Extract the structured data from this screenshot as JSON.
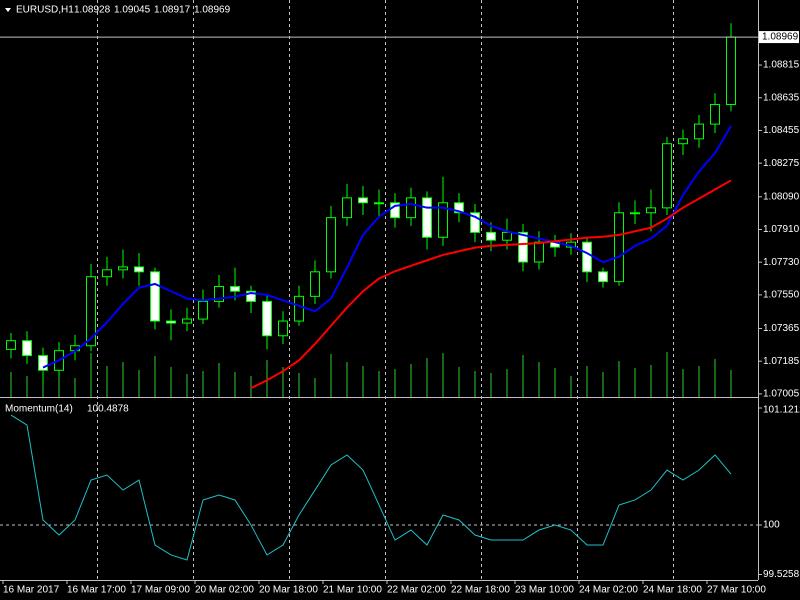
{
  "chart_data": [
    {
      "type": "candlestick",
      "title": "EURUSD,H1",
      "header_values": [
        1.08928,
        1.09045,
        1.08917,
        1.08969
      ],
      "categories": [
        "16 Mar 2017",
        null,
        null,
        null,
        "16 Mar 17:00",
        null,
        null,
        null,
        "17 Mar 09:00",
        null,
        null,
        null,
        "20 Mar 02:00",
        null,
        null,
        null,
        "20 Mar 18:00",
        null,
        null,
        null,
        "21 Mar 10:00",
        null,
        null,
        null,
        "22 Mar 02:00",
        null,
        null,
        null,
        "22 Mar 18:00",
        null,
        null,
        null,
        "23 Mar 10:00",
        null,
        null,
        null,
        "24 Mar 02:00",
        null,
        null,
        null,
        "24 Mar 18:00",
        null,
        null,
        null,
        "27 Mar 10:00",
        null
      ],
      "open": [
        1.0725,
        1.07298,
        1.07216,
        1.07135,
        1.07243,
        1.0727,
        1.0765,
        1.07688,
        1.07704,
        1.07677,
        1.07406,
        1.07395,
        1.07417,
        1.07514,
        1.07596,
        1.0757,
        1.07514,
        1.07325,
        1.07406,
        1.07542,
        1.07677,
        1.07975,
        1.08084,
        1.08057,
        1.08057,
        1.07975,
        1.08084,
        1.07867,
        1.08057,
        1.08002,
        1.07894,
        1.07851,
        1.07894,
        1.07731,
        1.0784,
        1.07813,
        1.0784,
        1.07677,
        1.07623,
        1.08002,
        1.08002,
        1.08029,
        1.08382,
        1.08409,
        1.0849,
        1.08598
      ],
      "high": [
        1.0734,
        1.0735,
        1.0726,
        1.0729,
        1.0733,
        1.0772,
        1.0776,
        1.078,
        1.0778,
        1.077,
        1.0747,
        1.0748,
        1.0758,
        1.0766,
        1.077,
        1.076,
        1.0755,
        1.0746,
        1.076,
        1.0774,
        1.0804,
        1.0816,
        1.0815,
        1.0813,
        1.0811,
        1.0814,
        1.0812,
        1.082,
        1.0811,
        1.0805,
        1.0795,
        1.0797,
        1.0794,
        1.079,
        1.0788,
        1.0789,
        1.0787,
        1.077,
        1.0806,
        1.0807,
        1.0813,
        1.0842,
        1.0846,
        1.0854,
        1.0866,
        1.09045
      ],
      "low": [
        1.072,
        1.0717,
        1.0706,
        1.071,
        1.0719,
        1.0724,
        1.076,
        1.0764,
        1.076,
        1.0736,
        1.073,
        1.0735,
        1.0739,
        1.0748,
        1.0752,
        1.0745,
        1.0725,
        1.0728,
        1.0738,
        1.075,
        1.0764,
        1.0793,
        1.0799,
        1.0798,
        1.0792,
        1.0793,
        1.078,
        1.0782,
        1.0795,
        1.0784,
        1.0779,
        1.078,
        1.0768,
        1.0769,
        1.0776,
        1.0777,
        1.0762,
        1.0759,
        1.076,
        1.0794,
        1.079,
        1.0799,
        1.0832,
        1.0836,
        1.0844,
        1.0856
      ],
      "close": [
        1.07298,
        1.07216,
        1.07135,
        1.07243,
        1.0727,
        1.0765,
        1.07688,
        1.07704,
        1.07677,
        1.07406,
        1.07395,
        1.07417,
        1.07514,
        1.07596,
        1.0757,
        1.07514,
        1.07325,
        1.07406,
        1.07542,
        1.07677,
        1.07975,
        1.08084,
        1.08057,
        1.08057,
        1.07975,
        1.08084,
        1.07867,
        1.08057,
        1.08002,
        1.07894,
        1.07851,
        1.07894,
        1.07731,
        1.0784,
        1.07813,
        1.0784,
        1.07677,
        1.07623,
        1.08002,
        1.08002,
        1.08029,
        1.08382,
        1.08409,
        1.0849,
        1.08598,
        1.08969
      ],
      "color": "#00ff00",
      "series": [
        {
          "color": "#0000ff",
          "values": [
            null,
            null,
            1.0715,
            1.0719,
            1.0724,
            1.0731,
            1.074,
            1.075,
            1.0759,
            1.0761,
            1.0757,
            1.0753,
            1.0752,
            1.0753,
            1.0754,
            1.0756,
            1.0755,
            1.0752,
            1.0749,
            1.0746,
            1.0753,
            1.077,
            1.0788,
            1.0798,
            1.0804,
            1.0805,
            1.0803,
            1.0803,
            1.0801,
            1.0798,
            1.0793,
            1.079,
            1.0788,
            1.0786,
            1.0784,
            1.0782,
            1.0778,
            1.0773,
            1.0776,
            1.0782,
            1.0786,
            1.0793,
            1.081,
            1.0823,
            1.0833,
            1.0848
          ]
        },
        {
          "color": "#ff0000",
          "values": [
            null,
            null,
            null,
            null,
            null,
            null,
            null,
            null,
            null,
            null,
            null,
            null,
            null,
            null,
            null,
            1.07037,
            1.0708,
            1.0713,
            1.0719,
            1.0728,
            1.0738,
            1.0748,
            1.0757,
            1.0764,
            1.0768,
            1.0771,
            1.0774,
            1.0777,
            1.0779,
            1.0781,
            1.0782,
            1.07825,
            1.0783,
            1.07835,
            1.07845,
            1.07855,
            1.07865,
            1.0787,
            1.0788,
            1.079,
            1.0792,
            1.0797,
            1.0803,
            1.0808,
            1.0813,
            1.0818
          ]
        }
      ],
      "volume": {
        "color": "#32cd32",
        "values": [
          500,
          420,
          760,
          560,
          380,
          880,
          620,
          700,
          540,
          820,
          600,
          460,
          520,
          680,
          500,
          420,
          740,
          600,
          480,
          380,
          860,
          700,
          620,
          520,
          560,
          660,
          780,
          880,
          600,
          520,
          480,
          560,
          840,
          700,
          580,
          420,
          620,
          500,
          720,
          580,
          640,
          900,
          560,
          620,
          760,
          540
        ]
      },
      "ylim": [
        1.06988,
        1.09173
      ],
      "yticks": [
        1.08815,
        1.08635,
        1.08455,
        1.08275,
        {
          "value": 1.0809,
          "label": "1.08090"
        },
        {
          "value": 1.0791,
          "label": "1.07910"
        },
        {
          "value": 1.0773,
          "label": "1.07730"
        },
        {
          "value": 1.0755,
          "label": "1.07550"
        },
        1.07365,
        1.07185,
        1.07005
      ],
      "grid": true
    },
    {
      "type": "line",
      "title": "Momentum(14)",
      "color": "#20c0c8",
      "values": [
        101.054,
        100.958,
        100.048,
        99.904,
        100.048,
        100.431,
        100.479,
        100.335,
        100.431,
        99.808,
        99.713,
        99.665,
        100.24,
        100.287,
        100.24,
        100,
        99.713,
        99.808,
        100.096,
        100.335,
        100.575,
        100.671,
        100.527,
        100.192,
        99.856,
        99.952,
        99.808,
        100.096,
        100.048,
        99.904,
        99.856,
        99.856,
        99.856,
        99.952,
        100,
        99.952,
        99.808,
        99.808,
        100.192,
        100.24,
        100.335,
        100.527,
        100.431,
        100.527,
        100.671,
        100.4878
      ],
      "ylim": [
        99.473,
        101.198
      ],
      "yticks": [
        101.1212,
        100,
        99.5258
      ]
    }
  ]
}
